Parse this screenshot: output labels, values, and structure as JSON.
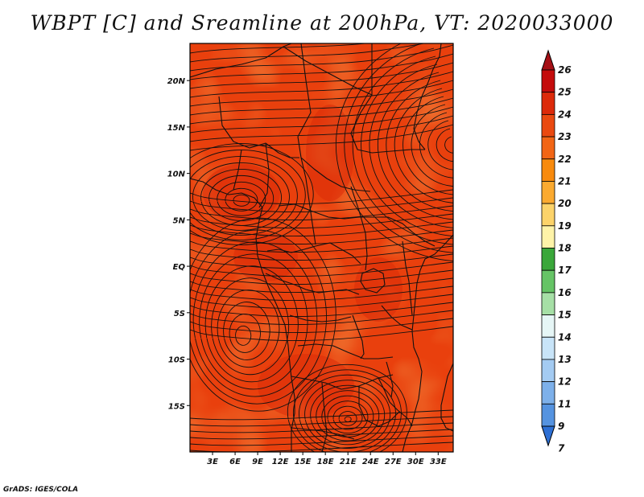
{
  "title": "WBPT [C] and Sreamline at 200hPa, VT: 2020033000",
  "credit": "GrADS: IGES/COLA",
  "map": {
    "lon_range": [
      0,
      35
    ],
    "lat_range": [
      -20,
      24
    ],
    "lon_ticks": [
      "3E",
      "6E",
      "9E",
      "12E",
      "15E",
      "18E",
      "21E",
      "24E",
      "27E",
      "30E",
      "33E"
    ],
    "lat_ticks": [
      "20N",
      "15N",
      "10N",
      "5N",
      "EQ",
      "5S",
      "10S",
      "15S"
    ],
    "field_colors": {
      "base": "#e9400d",
      "warm": "#db2c09",
      "cool": "#f0561a",
      "line": "#111111"
    }
  },
  "colorbar": {
    "labels": [
      "26",
      "25",
      "24",
      "23",
      "22",
      "21",
      "20",
      "19",
      "18",
      "17",
      "16",
      "15",
      "14",
      "13",
      "12",
      "11",
      "9",
      "7"
    ],
    "colors": [
      "#a50f15",
      "#c40c0c",
      "#dc2a0a",
      "#ea4910",
      "#f26515",
      "#f88a0d",
      "#fbaa30",
      "#fcd36a",
      "#fef3a8",
      "#3aa73a",
      "#66c466",
      "#a6dfa6",
      "#e6f6f6",
      "#c8e4f8",
      "#a4cbf2",
      "#7db0ea",
      "#5593e0",
      "#2d6fd4"
    ]
  }
}
